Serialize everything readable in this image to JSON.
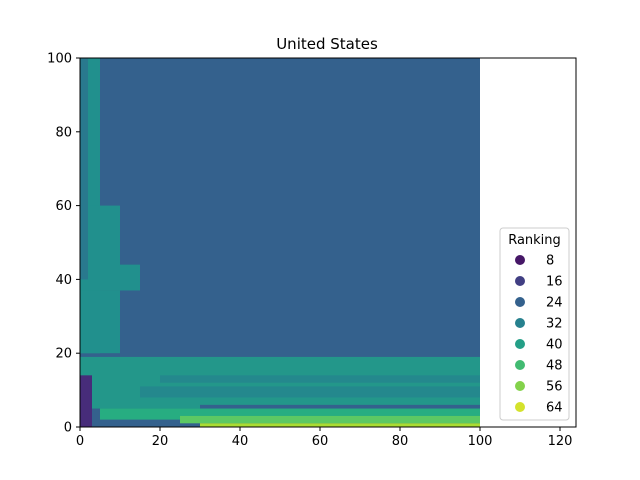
{
  "chart_data": {
    "type": "heatmap",
    "title": "United States",
    "xlabel": "",
    "ylabel": "",
    "xlim": [
      0,
      124
    ],
    "ylim": [
      0,
      100
    ],
    "x_ticks": [
      0,
      20,
      40,
      60,
      80,
      100,
      120
    ],
    "y_ticks": [
      0,
      20,
      40,
      60,
      80,
      100
    ],
    "grid": false,
    "data_extent": {
      "x": [
        0,
        100
      ],
      "y": [
        0,
        100
      ]
    },
    "regions": [
      {
        "value": 24,
        "x": [
          0,
          100
        ],
        "y": [
          0,
          100
        ]
      },
      {
        "value": 36,
        "x": [
          0,
          5
        ],
        "y": [
          20,
          100
        ]
      },
      {
        "value": 36,
        "x": [
          0,
          10
        ],
        "y": [
          37,
          60
        ]
      },
      {
        "value": 36,
        "x": [
          0,
          10
        ],
        "y": [
          20,
          37
        ]
      },
      {
        "value": 36,
        "x": [
          10,
          15
        ],
        "y": [
          37,
          44
        ]
      },
      {
        "value": 38,
        "x": [
          0,
          100
        ],
        "y": [
          5,
          19
        ]
      },
      {
        "value": 34,
        "x": [
          15,
          100
        ],
        "y": [
          8,
          11
        ]
      },
      {
        "value": 34,
        "x": [
          20,
          100
        ],
        "y": [
          12,
          14
        ]
      },
      {
        "value": 24,
        "x": [
          30,
          100
        ],
        "y": [
          5,
          6
        ]
      },
      {
        "value": 44,
        "x": [
          5,
          100
        ],
        "y": [
          2,
          5
        ]
      },
      {
        "value": 52,
        "x": [
          25,
          100
        ],
        "y": [
          1,
          3
        ]
      },
      {
        "value": 60,
        "x": [
          30,
          100
        ],
        "y": [
          0,
          1
        ]
      },
      {
        "value": 12,
        "x": [
          0,
          3
        ],
        "y": [
          0,
          14
        ]
      },
      {
        "value": 30,
        "x": [
          0,
          2
        ],
        "y": [
          40,
          100
        ]
      }
    ],
    "legend": {
      "title": "Ranking",
      "placement": "lower-right",
      "entries": [
        {
          "label": "8",
          "value": 8
        },
        {
          "label": "16",
          "value": 16
        },
        {
          "label": "24",
          "value": 24
        },
        {
          "label": "32",
          "value": 32
        },
        {
          "label": "40",
          "value": 40
        },
        {
          "label": "48",
          "value": 48
        },
        {
          "label": "56",
          "value": 56
        },
        {
          "label": "64",
          "value": 64
        }
      ]
    },
    "colormap": "viridis",
    "value_range": [
      4,
      68
    ]
  }
}
